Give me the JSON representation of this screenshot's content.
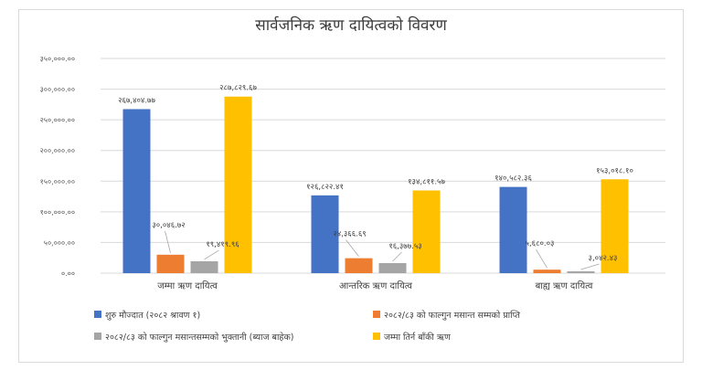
{
  "chart_data": {
    "type": "bar",
    "title": "सार्वजनिक ऋण दायित्वको विवरण",
    "categories": [
      "जम्मा ऋण दायित्व",
      "आन्तरिक ऋण दायित्व",
      "बाह्य ऋण दायित्व"
    ],
    "ylim": [
      0,
      350000
    ],
    "yticks": [
      0,
      50000,
      100000,
      150000,
      200000,
      250000,
      300000,
      350000
    ],
    "ytick_labels": [
      "०.००",
      "५०,०००.००",
      "१००,०००.००",
      "१५०,०००.००",
      "२००,०००.००",
      "२५०,०००.००",
      "३००,०००.००",
      "३५०,०००.००"
    ],
    "grid": true,
    "legend_position": "bottom",
    "series": [
      {
        "name": "शुरु मौज्दात (२०८२ श्रावण १)",
        "color": "#4472c4",
        "values": [
          267404.77,
          126822.41,
          140582.36
        ],
        "labels": [
          "२६७,४०४.७७",
          "१२६,८२२.४१",
          "१४०,५८२.३६"
        ]
      },
      {
        "name": "२०८२/८३ को फाल्गुन मसान्त सम्मको प्राप्ति",
        "color": "#ed7d31",
        "values": [
          30046.72,
          24366.69,
          5680.03
        ],
        "labels": [
          "३०,०४६.७२",
          "२४,३६६.६९",
          "५,६८०.०३"
        ]
      },
      {
        "name": "२०८२/८३ को फाल्गुन मसान्तसम्मको भुक्तानी (ब्याज बाहेक)",
        "color": "#a5a5a5",
        "values": [
          19419.96,
          16377.53,
          3042.43
        ],
        "labels": [
          "१९,४१९.९६",
          "१६,३७७.५३",
          "३,०४२.४३"
        ]
      },
      {
        "name": "जम्मा तिर्न बाँकी ऋण",
        "color": "#ffc000",
        "values": [
          287829.67,
          134811.57,
          153018.1
        ],
        "labels": [
          "२८७,८२९.६७",
          "१३४,८११.५७",
          "१५३,०१८.१०"
        ]
      }
    ]
  }
}
